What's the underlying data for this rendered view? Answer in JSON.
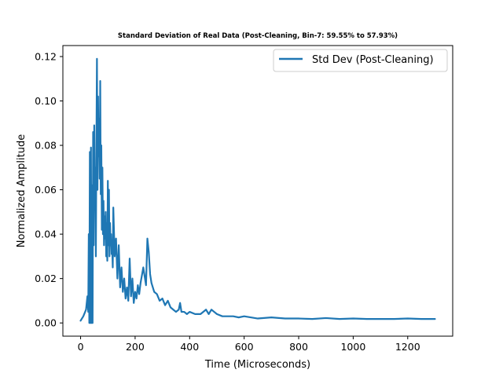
{
  "chart_data": {
    "type": "line",
    "title": "Standard Deviation of Real Data (Post-Cleaning, Bin-7: 59.55% to 57.93%)",
    "xlabel": "Time (Microseconds)",
    "ylabel": "Normalized Amplitude",
    "xlim": [
      -65,
      1365
    ],
    "ylim": [
      -0.00595,
      0.12495
    ],
    "x_ticks": [
      0,
      200,
      400,
      600,
      800,
      1000,
      1200
    ],
    "x_tick_labels": [
      "0",
      "200",
      "400",
      "600",
      "800",
      "1000",
      "1200"
    ],
    "y_ticks": [
      0.0,
      0.02,
      0.04,
      0.06,
      0.08,
      0.1,
      0.12
    ],
    "y_tick_labels": [
      "0.00",
      "0.02",
      "0.04",
      "0.06",
      "0.08",
      "0.10",
      "0.12"
    ],
    "grid": false,
    "legend_position": "top-right",
    "series": [
      {
        "name": "Std Dev (Post-Cleaning)",
        "color": "#1f77b4",
        "x": [
          0,
          10,
          20,
          25,
          28,
          30,
          32,
          34,
          36,
          38,
          40,
          42,
          44,
          46,
          48,
          50,
          52,
          54,
          56,
          58,
          60,
          62,
          64,
          66,
          68,
          70,
          72,
          74,
          76,
          78,
          80,
          82,
          84,
          86,
          88,
          90,
          92,
          94,
          96,
          98,
          100,
          102,
          104,
          106,
          108,
          110,
          112,
          114,
          116,
          118,
          120,
          125,
          130,
          135,
          140,
          145,
          150,
          155,
          160,
          165,
          170,
          175,
          180,
          185,
          190,
          195,
          200,
          205,
          210,
          215,
          220,
          230,
          240,
          245,
          250,
          255,
          260,
          270,
          280,
          290,
          300,
          310,
          320,
          330,
          340,
          350,
          360,
          365,
          370,
          380,
          390,
          400,
          420,
          440,
          460,
          470,
          480,
          490,
          500,
          520,
          540,
          560,
          580,
          600,
          650,
          700,
          750,
          800,
          850,
          900,
          950,
          1000,
          1050,
          1100,
          1150,
          1200,
          1250,
          1300
        ],
        "values": [
          0.001,
          0.003,
          0.006,
          0.012,
          0.005,
          0.04,
          0.0,
          0.077,
          0.0,
          0.079,
          0.0,
          0.062,
          0.0,
          0.086,
          0.035,
          0.089,
          0.052,
          0.07,
          0.03,
          0.08,
          0.119,
          0.06,
          0.102,
          0.075,
          0.092,
          0.065,
          0.109,
          0.058,
          0.08,
          0.042,
          0.07,
          0.04,
          0.055,
          0.035,
          0.048,
          0.038,
          0.05,
          0.03,
          0.045,
          0.028,
          0.064,
          0.035,
          0.06,
          0.03,
          0.045,
          0.035,
          0.04,
          0.031,
          0.033,
          0.025,
          0.052,
          0.03,
          0.038,
          0.02,
          0.035,
          0.016,
          0.025,
          0.014,
          0.02,
          0.011,
          0.016,
          0.01,
          0.029,
          0.012,
          0.02,
          0.009,
          0.014,
          0.011,
          0.017,
          0.013,
          0.018,
          0.025,
          0.017,
          0.038,
          0.032,
          0.022,
          0.018,
          0.014,
          0.013,
          0.01,
          0.011,
          0.008,
          0.01,
          0.007,
          0.006,
          0.005,
          0.006,
          0.009,
          0.005,
          0.005,
          0.004,
          0.005,
          0.004,
          0.004,
          0.006,
          0.004,
          0.006,
          0.005,
          0.004,
          0.003,
          0.003,
          0.003,
          0.0025,
          0.003,
          0.002,
          0.0025,
          0.002,
          0.002,
          0.0018,
          0.0022,
          0.0018,
          0.002,
          0.0018,
          0.0018,
          0.0018,
          0.002,
          0.0018,
          0.0018
        ]
      }
    ]
  }
}
